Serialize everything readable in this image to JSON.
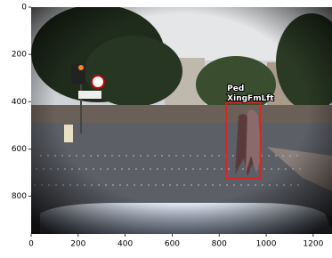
{
  "chart_data": {
    "type": "image",
    "xlim": [
      0,
      1280
    ],
    "ylim": [
      960,
      0
    ],
    "xticks": [
      0,
      200,
      400,
      600,
      800,
      1000,
      1200
    ],
    "yticks": [
      0,
      200,
      400,
      600,
      800
    ],
    "boxes": [
      {
        "label_lines": [
          "Ped",
          "XingFmLft"
        ],
        "color": "#e02020",
        "x": [
          830,
          975
        ],
        "y": [
          405,
          725
        ]
      }
    ]
  }
}
